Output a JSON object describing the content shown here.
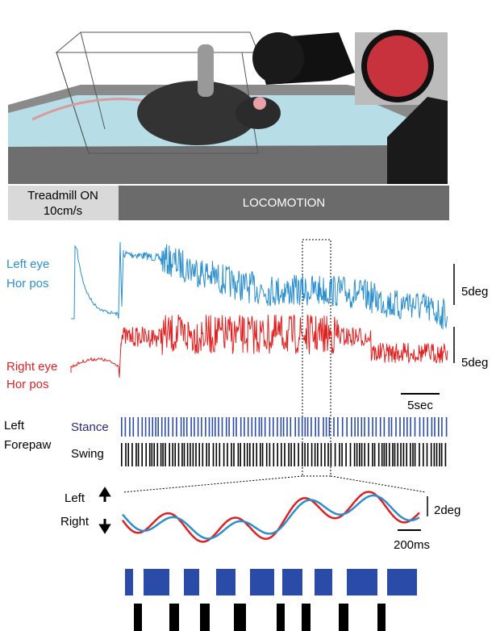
{
  "header_bar": {
    "treadmill": [
      "Treadmill ON",
      "10cm/s"
    ],
    "locomotion": "LOCOMOTION"
  },
  "traces": {
    "left_eye": {
      "label": [
        "Left eye",
        "Hor pos"
      ],
      "scale": "5deg"
    },
    "right_eye": {
      "label": [
        "Right eye",
        "Hor pos"
      ],
      "scale": "5deg"
    },
    "time_scale": "5sec"
  },
  "forepaw": {
    "label": [
      "Left",
      "Forepaw"
    ],
    "stance": "Stance",
    "swing": "Swing"
  },
  "zoom": {
    "directions": [
      "Left",
      "Right"
    ],
    "scale": "2deg",
    "time_scale": "200ms"
  }
}
